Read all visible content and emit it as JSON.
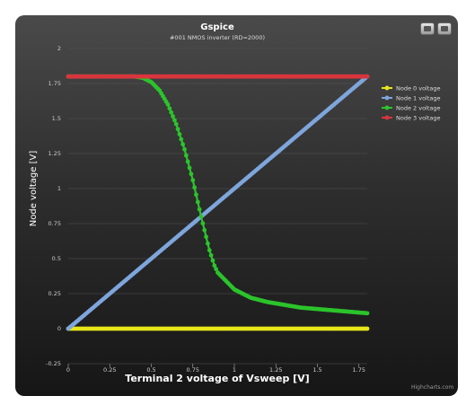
{
  "chart_data": {
    "type": "line",
    "title": "Gspice",
    "subtitle": "#001 NMOS inverter (RD=2000)",
    "xlabel": "Terminal 2 voltage of Vsweep [V]",
    "ylabel": "Node voltage [V]",
    "xlim": [
      0,
      1.8
    ],
    "ylim": [
      -0.25,
      2
    ],
    "x_ticks": [
      "0",
      "0.25",
      "0.5",
      "0.75",
      "1",
      "1.25",
      "1.5",
      "1.75"
    ],
    "y_ticks": [
      "-0.25",
      "0",
      "0.25",
      "0.5",
      "0.75",
      "1",
      "1.25",
      "1.5",
      "1.75",
      "2"
    ],
    "grid": true,
    "legend_position": "right",
    "series": [
      {
        "name": "Node 0 voltage",
        "color": "#e6e619",
        "x": [
          0,
          1.8
        ],
        "y": [
          0,
          0
        ]
      },
      {
        "name": "Node 1 voltage",
        "color": "#7ea6dc",
        "x": [
          0,
          1.8
        ],
        "y": [
          0,
          1.8
        ]
      },
      {
        "name": "Node 2 voltage",
        "color": "#2bc42b",
        "x": [
          0,
          0.3,
          0.4,
          0.45,
          0.5,
          0.55,
          0.6,
          0.65,
          0.7,
          0.75,
          0.8,
          0.85,
          0.88,
          0.9,
          0.95,
          1.0,
          1.1,
          1.2,
          1.3,
          1.4,
          1.5,
          1.6,
          1.7,
          1.8
        ],
        "y": [
          1.8,
          1.8,
          1.8,
          1.79,
          1.76,
          1.7,
          1.6,
          1.46,
          1.28,
          1.06,
          0.8,
          0.56,
          0.45,
          0.4,
          0.34,
          0.28,
          0.22,
          0.19,
          0.17,
          0.15,
          0.14,
          0.13,
          0.12,
          0.11
        ]
      },
      {
        "name": "Node 3 voltage",
        "color": "#d9353d",
        "x": [
          0,
          1.8
        ],
        "y": [
          1.8,
          1.8
        ]
      }
    ]
  },
  "credits": "Highcharts.com"
}
